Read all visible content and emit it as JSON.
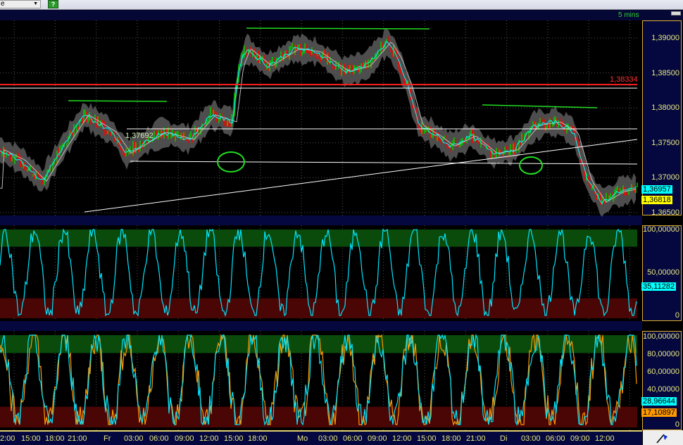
{
  "toolbar": {
    "dropdown_value": "e",
    "go_button": "?"
  },
  "header": {
    "interval": "5 mins"
  },
  "price_panel": {
    "ticks": [
      "1,39000",
      "1,38500",
      "1,38000",
      "1,37500",
      "1,37000",
      "1,36500"
    ],
    "tick_values": [
      1.39,
      1.385,
      1.38,
      1.375,
      1.37,
      1.365
    ],
    "range": [
      1.3645,
      1.3925
    ],
    "red_level": {
      "label": "1,38334",
      "value": 1.38334
    },
    "chart_label": "1,37692",
    "tags": [
      {
        "label": "1,36957",
        "color": "#00ffff"
      },
      {
        "label": "1,36818",
        "color": "#ffff00"
      }
    ],
    "price_path": [
      [
        0,
        1.374
      ],
      [
        30,
        1.3725
      ],
      [
        60,
        1.3695
      ],
      [
        90,
        1.3745
      ],
      [
        120,
        1.379
      ],
      [
        160,
        1.3765
      ],
      [
        180,
        1.3735
      ],
      [
        230,
        1.3765
      ],
      [
        270,
        1.3755
      ],
      [
        300,
        1.379
      ],
      [
        330,
        1.378
      ],
      [
        340,
        1.386
      ],
      [
        350,
        1.3885
      ],
      [
        380,
        1.386
      ],
      [
        420,
        1.3885
      ],
      [
        450,
        1.388
      ],
      [
        490,
        1.3852
      ],
      [
        520,
        1.386
      ],
      [
        550,
        1.3895
      ],
      [
        565,
        1.387
      ],
      [
        580,
        1.383
      ],
      [
        595,
        1.3775
      ],
      [
        620,
        1.376
      ],
      [
        640,
        1.3745
      ],
      [
        670,
        1.376
      ],
      [
        700,
        1.3735
      ],
      [
        730,
        1.374
      ],
      [
        760,
        1.3775
      ],
      [
        790,
        1.378
      ],
      [
        815,
        1.3765
      ],
      [
        835,
        1.3695
      ],
      [
        855,
        1.3665
      ],
      [
        880,
        1.368
      ],
      [
        905,
        1.3685
      ]
    ]
  },
  "osc1": {
    "ticks": [
      "100,00000",
      "50,00000",
      "0"
    ],
    "tag": "35,11282",
    "tag_color": "#00ffff",
    "zones": {
      "green": [
        80,
        100
      ],
      "red": [
        0,
        20
      ]
    }
  },
  "osc2": {
    "ticks": [
      "100,00000",
      "80,00000",
      "60,00000",
      "40,00000",
      "0"
    ],
    "tags": [
      {
        "label": "28,96644",
        "color": "#00ffff"
      },
      {
        "label": "17,10897",
        "color": "#ff9900"
      }
    ],
    "zones": {
      "green": [
        80,
        100
      ],
      "red": [
        0,
        20
      ]
    }
  },
  "time_axis": [
    "2:00",
    "15:00",
    "18:00",
    "21:00",
    "Fr",
    "03:00",
    "06:00",
    "09:00",
    "12:00",
    "15:00",
    "18:00",
    "Mo",
    "03:00",
    "06:00",
    "09:00",
    "12:00",
    "15:00",
    "18:00",
    "21:00",
    "Di",
    "03:00",
    "06:00",
    "09:00",
    "12:00"
  ],
  "colors": {
    "bull": "#00cc00",
    "bear": "#ff0000",
    "ma": "#00ffff",
    "band": "#777777",
    "axis_bg": "#05083e",
    "axis_text": "#e8e880"
  }
}
